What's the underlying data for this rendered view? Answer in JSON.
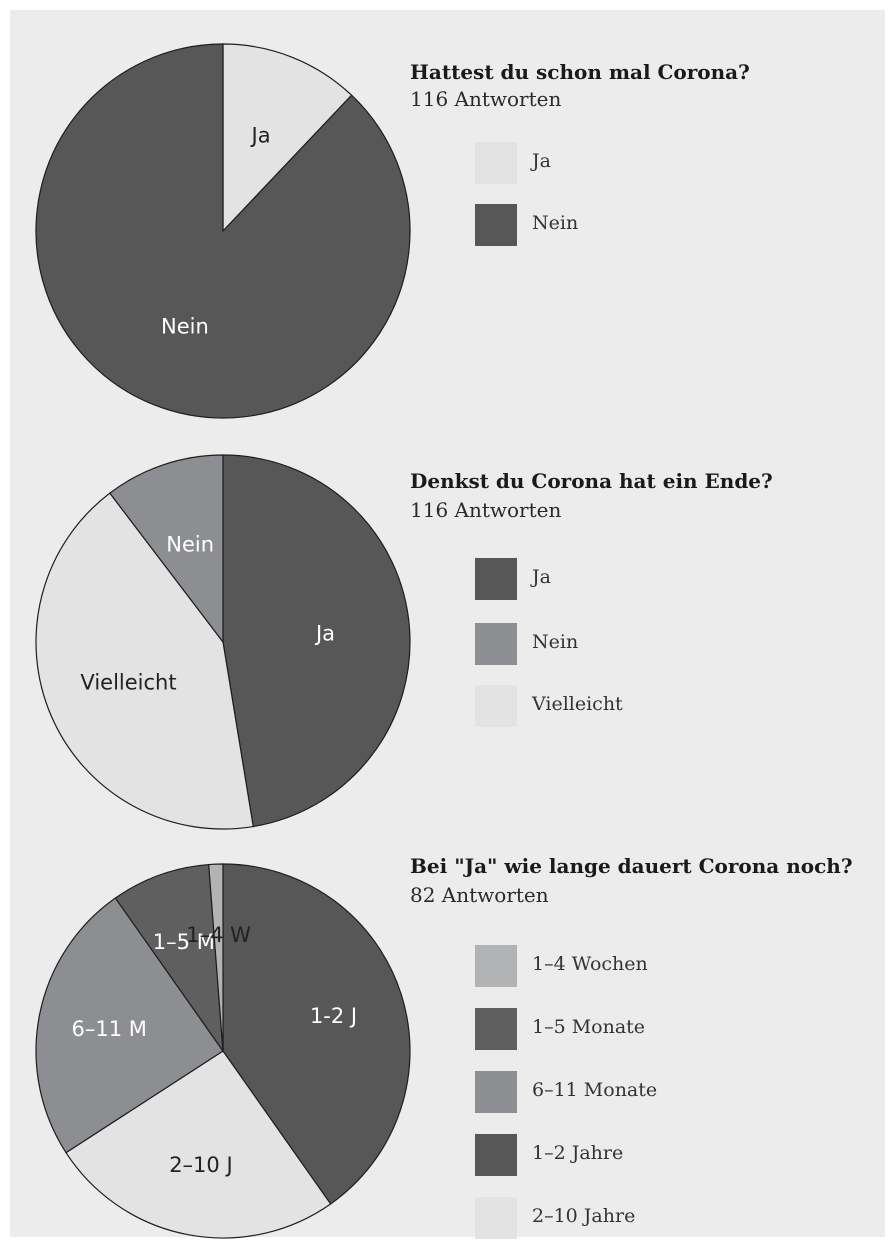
{
  "chart_data": [
    {
      "type": "pie",
      "title": "Hattest du schon mal Corona?",
      "subtitle": "116 Antworten",
      "legend_position": "right",
      "slices": [
        {
          "label": "Ja",
          "legend": "Ja",
          "value": 14,
          "color": "#e3e3e3",
          "text_color": "#222222"
        },
        {
          "label": "Nein",
          "legend": "Nein",
          "value": 102,
          "color": "#575757",
          "text_color": "#ffffff"
        }
      ]
    },
    {
      "type": "pie",
      "title": "Denkst du Corona hat ein Ende?",
      "subtitle": "116 Antworten",
      "legend_position": "right",
      "slices": [
        {
          "label": "Ja",
          "legend": "Ja",
          "value": 55,
          "color": "#575757",
          "text_color": "#ffffff"
        },
        {
          "label": "Vielleicht",
          "legend": "Vielleicht",
          "value": 49,
          "color": "#e3e3e3",
          "text_color": "#222222"
        },
        {
          "label": "Nein",
          "legend": "Nein",
          "value": 12,
          "color": "#8d8e91",
          "text_color": "#ffffff"
        }
      ],
      "legend_order": [
        "Ja",
        "Nein",
        "Vielleicht"
      ]
    },
    {
      "type": "pie",
      "title": "Bei \"Ja\" wie lange dauert Corona noch?",
      "subtitle": "82 Antworten",
      "legend_position": "right",
      "slices": [
        {
          "label": "1-2 J",
          "legend": "1–2 Jahre",
          "value": 33,
          "color": "#575757",
          "text_color": "#ffffff"
        },
        {
          "label": "2–10 J",
          "legend": "2–10 Jahre",
          "value": 21,
          "color": "#e3e3e3",
          "text_color": "#222222"
        },
        {
          "label": "6–11 M",
          "legend": "6–11 Monate",
          "value": 20,
          "color": "#8d8e91",
          "text_color": "#ffffff"
        },
        {
          "label": "1–5 M",
          "legend": "1–5 Monate",
          "value": 7,
          "color": "#5f5f5f",
          "text_color": "#ffffff"
        },
        {
          "label": "1–4 W",
          "legend": "1–4 Wochen",
          "value": 1,
          "color": "#b2b3b5",
          "text_color": "#222222"
        }
      ],
      "legend_order": [
        "1–4 Wochen",
        "1–5 Monate",
        "6–11 Monate",
        "1–2 Jahre",
        "2–10 Jahre"
      ]
    }
  ]
}
